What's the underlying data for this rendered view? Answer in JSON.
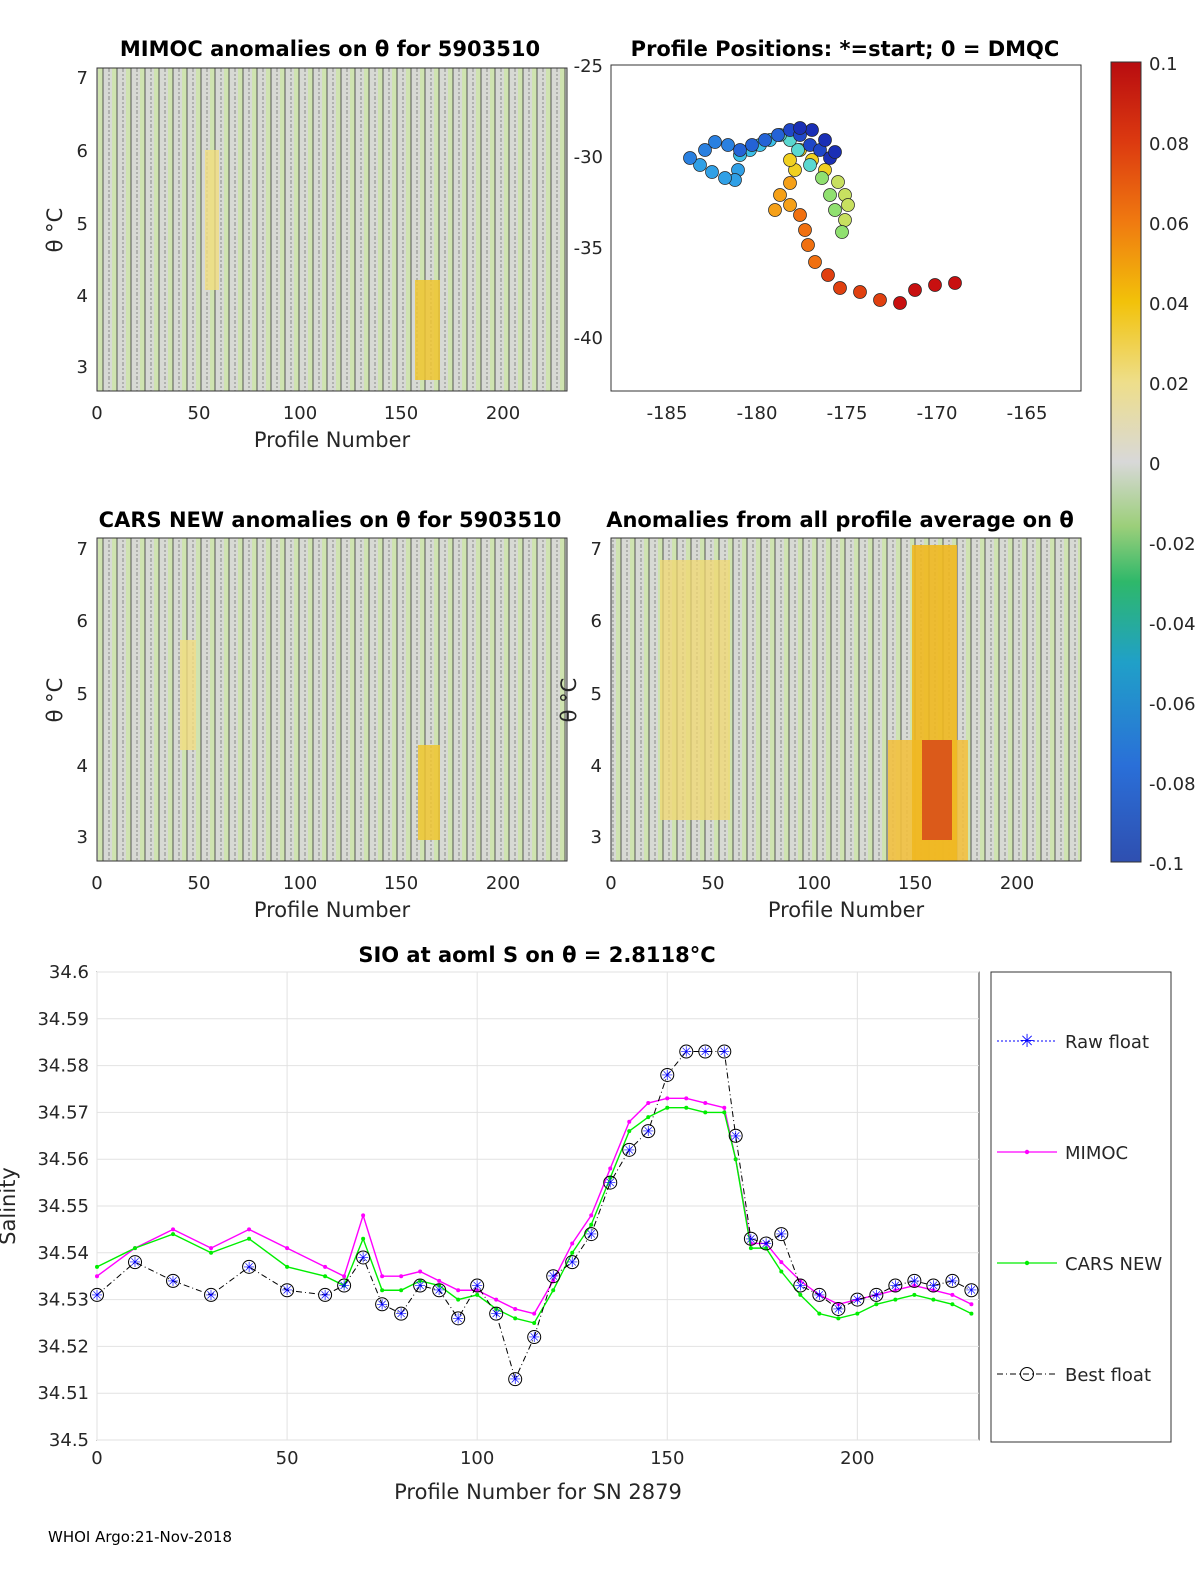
{
  "footer": "WHOI Argo:21-Nov-2018",
  "colorbar": {
    "ticks": [
      "0.1",
      "0.08",
      "0.06",
      "0.04",
      "0.02",
      "0",
      "-0.02",
      "-0.04",
      "-0.06",
      "-0.08",
      "-0.1"
    ]
  },
  "panel_mimoc": {
    "title": "MIMOC anomalies on θ  for 5903510",
    "ylabel": "θ °C",
    "xlabel": "Profile Number",
    "yticks": [
      "7",
      "6",
      "5",
      "4",
      "3"
    ],
    "xticks": [
      "0",
      "50",
      "100",
      "150",
      "200"
    ]
  },
  "panel_map": {
    "title": "Profile Positions: *=start; 0 = DMQC",
    "yticks": [
      "-25",
      "-30",
      "-35",
      "-40"
    ],
    "xticks": [
      "-185",
      "-180",
      "-175",
      "-170",
      "-165"
    ]
  },
  "panel_cars": {
    "title": "CARS NEW anomalies on θ for 5903510",
    "ylabel": "θ °C",
    "xlabel": "Profile Number",
    "yticks": [
      "7",
      "6",
      "5",
      "4",
      "3"
    ],
    "xticks": [
      "0",
      "50",
      "100",
      "150",
      "200"
    ]
  },
  "panel_avg": {
    "title": "Anomalies from all profile average on θ",
    "ylabel": "θ °C",
    "xlabel": "Profile Number",
    "yticks": [
      "7",
      "6",
      "5",
      "4",
      "3"
    ],
    "xticks": [
      "0",
      "50",
      "100",
      "150",
      "200"
    ]
  },
  "chart_data": {
    "type": "line",
    "title": "SIO at aoml S on θ = 2.8118°C",
    "xlabel": "Profile Number for SN 2879",
    "ylabel": "Salinity",
    "xlim": [
      0,
      232
    ],
    "ylim": [
      34.5,
      34.6
    ],
    "xticks": [
      "0",
      "50",
      "100",
      "150",
      "200"
    ],
    "yticks": [
      "34.6",
      "34.59",
      "34.58",
      "34.57",
      "34.56",
      "34.55",
      "34.54",
      "34.53",
      "34.52",
      "34.51",
      "34.5"
    ],
    "legend": [
      "Raw float",
      "MIMOC",
      "CARS NEW",
      "Best float"
    ],
    "colors": {
      "raw": "#0000ff",
      "mimoc": "#ff00ff",
      "cars": "#00ee00",
      "best": "#000000"
    },
    "series_x": [
      0,
      10,
      20,
      30,
      40,
      50,
      60,
      65,
      70,
      75,
      80,
      85,
      90,
      95,
      100,
      105,
      110,
      115,
      120,
      125,
      130,
      135,
      140,
      145,
      150,
      155,
      160,
      165,
      168,
      172,
      176,
      180,
      185,
      190,
      195,
      200,
      205,
      210,
      215,
      220,
      225,
      230
    ],
    "float": [
      34.531,
      34.538,
      34.534,
      34.531,
      34.537,
      34.532,
      34.531,
      34.533,
      34.539,
      34.529,
      34.527,
      34.533,
      34.532,
      34.526,
      34.533,
      34.527,
      34.513,
      34.522,
      34.535,
      34.538,
      34.544,
      34.555,
      34.562,
      34.566,
      34.578,
      34.583,
      34.583,
      34.583,
      34.565,
      34.543,
      34.542,
      34.544,
      34.533,
      34.531,
      34.528,
      34.53,
      34.531,
      34.533,
      34.534,
      34.533,
      34.534,
      34.532
    ],
    "mimoc": [
      34.535,
      34.541,
      34.545,
      34.541,
      34.545,
      34.541,
      34.537,
      34.535,
      34.548,
      34.535,
      34.535,
      34.536,
      34.534,
      34.532,
      34.532,
      34.53,
      34.528,
      34.527,
      34.534,
      34.542,
      34.548,
      34.558,
      34.568,
      34.572,
      34.573,
      34.573,
      34.572,
      34.571,
      34.56,
      34.542,
      34.542,
      34.538,
      34.534,
      34.531,
      34.529,
      34.53,
      34.531,
      34.532,
      34.533,
      34.532,
      34.531,
      34.529
    ],
    "cars": [
      34.537,
      34.541,
      34.544,
      34.54,
      34.543,
      34.537,
      34.535,
      34.533,
      34.543,
      34.532,
      34.532,
      34.534,
      34.533,
      34.53,
      34.531,
      34.528,
      34.526,
      34.525,
      34.532,
      34.54,
      34.546,
      34.556,
      34.566,
      34.569,
      34.571,
      34.571,
      34.57,
      34.57,
      34.56,
      34.541,
      34.541,
      34.536,
      34.531,
      34.527,
      34.526,
      34.527,
      34.529,
      34.53,
      34.531,
      34.53,
      34.529,
      34.527
    ]
  }
}
